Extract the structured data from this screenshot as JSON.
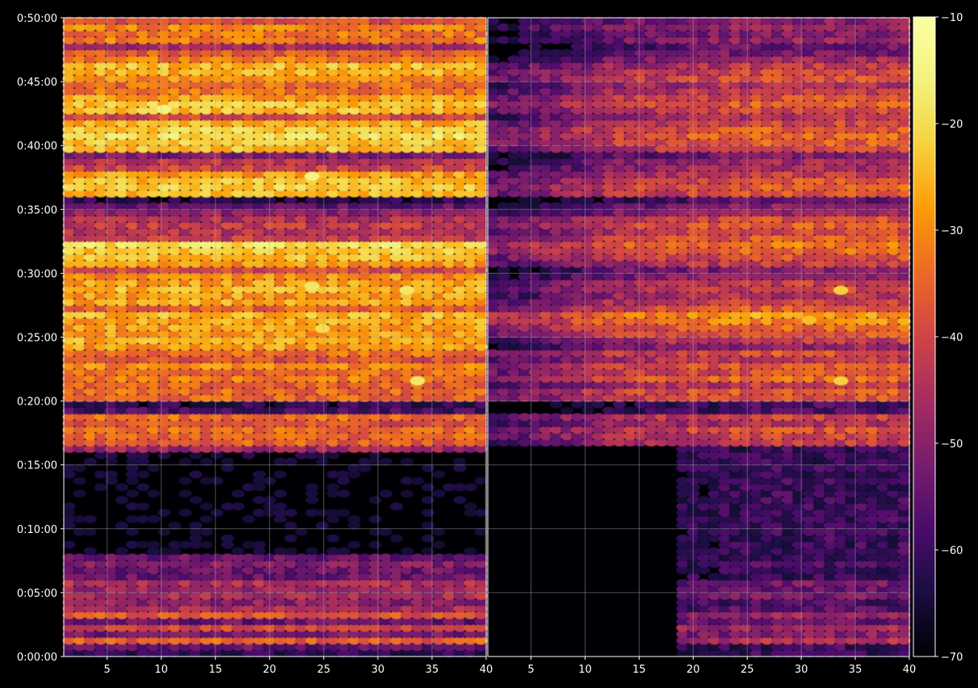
{
  "chart_data": {
    "type": "heatmap",
    "colormap": "inferno",
    "background_color": "#000000",
    "grid": true,
    "panels": [
      {
        "x_range": [
          1,
          40
        ],
        "x_ticks": [
          "5",
          "10",
          "15",
          "20",
          "25",
          "30",
          "35",
          "40"
        ]
      },
      {
        "x_range": [
          1,
          40
        ],
        "x_ticks": [
          "5",
          "10",
          "15",
          "20",
          "25",
          "30",
          "35",
          "40"
        ]
      }
    ],
    "y_ticks": [
      "0:00:00",
      "0:05:00",
      "0:10:00",
      "0:15:00",
      "0:20:00",
      "0:25:00",
      "0:30:00",
      "0:35:00",
      "0:40:00",
      "0:45:00",
      "0:50:00"
    ],
    "y_range_seconds": [
      0,
      3000
    ],
    "colorbar": {
      "min": -70,
      "max": -10,
      "ticks": [
        "−10",
        "−20",
        "−30",
        "−40",
        "−50",
        "−60",
        "−70"
      ]
    },
    "row_band_seconds": 30,
    "row_profiles": {
      "left": [
        -62,
        -55,
        -36,
        -52,
        -40,
        -55,
        -37,
        -46,
        -50,
        -45,
        -48,
        -45,
        -54,
        -54,
        -51,
        -55,
        -68,
        -68,
        -68,
        -68,
        -68,
        -68,
        -68,
        -68,
        -68,
        -68,
        -68,
        -68,
        -68,
        -68,
        -68,
        -66,
        -48,
        -36,
        -35,
        -34,
        -38,
        -34,
        -58,
        -62,
        -35,
        -34,
        -36,
        -32,
        -34,
        -30,
        -38,
        -34,
        -28,
        -26,
        -28,
        -28,
        -27,
        -25,
        -36,
        -27,
        -28,
        -25,
        -28,
        -30,
        -40,
        -29,
        -24,
        -23,
        -20,
        -42,
        -44,
        -42,
        -45,
        -50,
        -55,
        -62,
        -25,
        -22,
        -24,
        -28,
        -40,
        -44,
        -52,
        -24,
        -23,
        -20,
        -22,
        -26,
        -40,
        -24,
        -23,
        -28,
        -33,
        -34,
        -30,
        -26,
        -24,
        -32,
        -36,
        -46,
        -32,
        -33,
        -31,
        -38
      ],
      "right": [
        -68,
        -68,
        -52,
        -58,
        -54,
        -62,
        -55,
        -64,
        -66,
        -60,
        -62,
        -60,
        -68,
        -68,
        -66,
        -68,
        -68,
        -68,
        -68,
        -68,
        -68,
        -68,
        -68,
        -68,
        -68,
        -68,
        -68,
        -68,
        -68,
        -68,
        -68,
        -68,
        -68,
        -50,
        -48,
        -46,
        -52,
        -48,
        -66,
        -66,
        -46,
        -44,
        -50,
        -42,
        -46,
        -44,
        -50,
        -46,
        -56,
        -50,
        -44,
        -42,
        -38,
        -36,
        -44,
        -48,
        -52,
        -48,
        -50,
        -56,
        -58,
        -50,
        -46,
        -42,
        -40,
        -44,
        -48,
        -44,
        -46,
        -55,
        -58,
        -64,
        -46,
        -44,
        -46,
        -50,
        -54,
        -55,
        -60,
        -48,
        -44,
        -42,
        -44,
        -48,
        -52,
        -48,
        -44,
        -46,
        -50,
        -52,
        -46,
        -48,
        -50,
        -55,
        -60,
        -62,
        -56,
        -58,
        -54,
        -58
      ]
    },
    "column_profiles": {
      "left": [
        0,
        0,
        0,
        0,
        0,
        0,
        0,
        0,
        0,
        0,
        0,
        0,
        0,
        0,
        0,
        0,
        0,
        0,
        0,
        0,
        0,
        0,
        0,
        0,
        0,
        0,
        0,
        0,
        0,
        0,
        0,
        0,
        0,
        0,
        0,
        0,
        0,
        0,
        0,
        0
      ],
      "right": [
        -8,
        -8,
        -7,
        -6,
        -5,
        -4,
        -3,
        -2,
        -1,
        0,
        1,
        2,
        3,
        3,
        4,
        4,
        5,
        5,
        5,
        6,
        6,
        6,
        7,
        7,
        7,
        8,
        8,
        8,
        8,
        8,
        8,
        8,
        8,
        8,
        8,
        8,
        8,
        8,
        8,
        8
      ]
    },
    "empty_columns_before_1000s": {
      "right": 18
    },
    "hot_spots": [
      {
        "panel": 0,
        "x": 10,
        "t": 2570,
        "value": -15
      },
      {
        "panel": 0,
        "x": 24,
        "t": 2255,
        "value": -15
      },
      {
        "panel": 0,
        "x": 24,
        "t": 1740,
        "value": -18
      },
      {
        "panel": 0,
        "x": 33,
        "t": 1720,
        "value": -18
      },
      {
        "panel": 0,
        "x": 34,
        "t": 1295,
        "value": -18
      },
      {
        "panel": 0,
        "x": 25,
        "t": 1540,
        "value": -20
      },
      {
        "panel": 1,
        "x": 34,
        "t": 1720,
        "value": -22
      },
      {
        "panel": 1,
        "x": 34,
        "t": 1295,
        "value": -22
      },
      {
        "panel": 1,
        "x": 31,
        "t": 1580,
        "value": -24
      }
    ]
  }
}
